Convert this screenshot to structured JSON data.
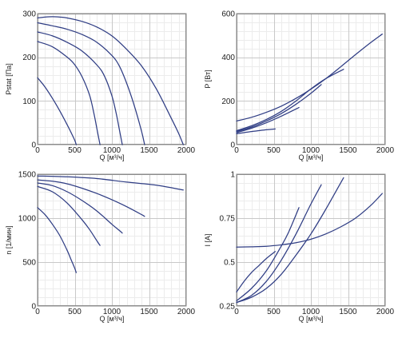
{
  "chart_data": [
    {
      "type": "line",
      "title": "",
      "xlabel": "Q [м³/ч]",
      "ylabel": "Pstat [Па]",
      "xlim": [
        0,
        2000
      ],
      "ylim": [
        0,
        300
      ],
      "xticks": [
        "0",
        "500",
        "1000",
        "1500",
        "2000"
      ],
      "yticks": [
        "0",
        "100",
        "200",
        "300"
      ],
      "grid": true,
      "line_color": "#2f3d84",
      "series": [
        {
          "x": [
            0,
            100,
            200,
            300,
            400,
            450,
            500,
            520
          ],
          "values": [
            153,
            132,
            106,
            77,
            45,
            28,
            10,
            0
          ]
        },
        {
          "x": [
            0,
            200,
            400,
            500,
            600,
            700,
            760,
            800,
            840
          ],
          "values": [
            236,
            224,
            200,
            183,
            155,
            113,
            70,
            35,
            0
          ]
        },
        {
          "x": [
            0,
            200,
            400,
            600,
            800,
            900,
            1000,
            1060,
            1100,
            1140
          ],
          "values": [
            258,
            249,
            234,
            214,
            182,
            157,
            112,
            70,
            35,
            0
          ]
        },
        {
          "x": [
            0,
            200,
            400,
            600,
            800,
            1000,
            1100,
            1200,
            1300,
            1400,
            1440
          ],
          "values": [
            279,
            272,
            264,
            252,
            234,
            204,
            180,
            140,
            90,
            30,
            0
          ]
        },
        {
          "x": [
            0,
            100,
            200,
            300,
            400,
            600,
            800,
            1000,
            1200,
            1400,
            1600,
            1800,
            1900,
            1960
          ],
          "values": [
            290,
            292,
            293,
            292,
            290,
            282,
            269,
            249,
            218,
            180,
            127,
            60,
            25,
            0
          ]
        }
      ]
    },
    {
      "type": "line",
      "title": "",
      "xlabel": "Q [м³/ч]",
      "ylabel": "P [Вт]",
      "xlim": [
        0,
        2000
      ],
      "ylim": [
        0,
        600
      ],
      "xticks": [
        "0",
        "500",
        "1000",
        "1500",
        "2000"
      ],
      "yticks": [
        "0",
        "200",
        "400",
        "600"
      ],
      "grid": true,
      "line_color": "#2f3d84",
      "series": [
        {
          "x": [
            0,
            100,
            200,
            300,
            400,
            520
          ],
          "values": [
            50,
            55,
            60,
            64,
            68,
            72
          ]
        },
        {
          "x": [
            0,
            200,
            400,
            600,
            840
          ],
          "values": [
            55,
            75,
            100,
            130,
            170
          ]
        },
        {
          "x": [
            0,
            200,
            400,
            600,
            800,
            1000,
            1140
          ],
          "values": [
            60,
            80,
            108,
            142,
            185,
            235,
            275
          ]
        },
        {
          "x": [
            0,
            200,
            400,
            600,
            800,
            1000,
            1200,
            1440
          ],
          "values": [
            64,
            86,
            115,
            152,
            200,
            255,
            302,
            345
          ]
        },
        {
          "x": [
            0,
            200,
            400,
            600,
            800,
            1000,
            1200,
            1400,
            1600,
            1800,
            1960
          ],
          "values": [
            108,
            125,
            148,
            176,
            212,
            254,
            302,
            356,
            412,
            466,
            506
          ]
        }
      ]
    },
    {
      "type": "line",
      "title": "",
      "xlabel": "Q [м³/ч]",
      "ylabel": "n [1/мин]",
      "xlim": [
        0,
        2000
      ],
      "ylim": [
        0,
        1500
      ],
      "xticks": [
        "0",
        "500",
        "1000",
        "1500",
        "2000"
      ],
      "yticks": [
        "0",
        "500",
        "1000",
        "1500"
      ],
      "grid": true,
      "line_color": "#2f3d84",
      "series": [
        {
          "x": [
            0,
            100,
            200,
            300,
            400,
            450,
            500,
            520
          ],
          "values": [
            1120,
            1040,
            930,
            800,
            630,
            530,
            430,
            380
          ]
        },
        {
          "x": [
            0,
            200,
            400,
            600,
            700,
            800,
            840
          ],
          "values": [
            1360,
            1300,
            1170,
            980,
            870,
            740,
            690
          ]
        },
        {
          "x": [
            0,
            200,
            400,
            600,
            800,
            1000,
            1100,
            1140
          ],
          "values": [
            1400,
            1370,
            1300,
            1200,
            1080,
            930,
            860,
            830
          ]
        },
        {
          "x": [
            0,
            200,
            400,
            600,
            800,
            1000,
            1200,
            1400,
            1440
          ],
          "values": [
            1435,
            1420,
            1390,
            1340,
            1280,
            1210,
            1130,
            1040,
            1020
          ]
        },
        {
          "x": [
            0,
            400,
            800,
            1200,
            1600,
            1960
          ],
          "values": [
            1480,
            1470,
            1450,
            1410,
            1375,
            1320
          ]
        }
      ]
    },
    {
      "type": "line",
      "title": "",
      "xlabel": "Q [м³/ч]",
      "ylabel": "I [A]",
      "xlim": [
        0,
        2000
      ],
      "ylim": [
        0.25,
        1
      ],
      "xticks": [
        "0",
        "500",
        "1000",
        "1500",
        "2000"
      ],
      "yticks": [
        "0.25",
        "0.5",
        "0.75",
        "1"
      ],
      "grid": true,
      "line_color": "#2f3d84",
      "series": [
        {
          "x": [
            0,
            100,
            200,
            300,
            400,
            520
          ],
          "values": [
            0.33,
            0.39,
            0.44,
            0.48,
            0.52,
            0.56
          ]
        },
        {
          "x": [
            0,
            200,
            400,
            600,
            700,
            840
          ],
          "values": [
            0.28,
            0.35,
            0.45,
            0.59,
            0.67,
            0.81
          ]
        },
        {
          "x": [
            0,
            200,
            400,
            600,
            800,
            1000,
            1140
          ],
          "values": [
            0.27,
            0.31,
            0.39,
            0.51,
            0.66,
            0.83,
            0.94
          ]
        },
        {
          "x": [
            0,
            200,
            400,
            600,
            800,
            1000,
            1200,
            1440
          ],
          "values": [
            0.27,
            0.3,
            0.35,
            0.43,
            0.54,
            0.66,
            0.8,
            0.98
          ]
        },
        {
          "x": [
            0,
            200,
            400,
            600,
            800,
            1000,
            1200,
            1400,
            1600,
            1800,
            1960
          ],
          "values": [
            0.585,
            0.587,
            0.59,
            0.598,
            0.61,
            0.63,
            0.66,
            0.7,
            0.75,
            0.82,
            0.89
          ]
        }
      ]
    }
  ]
}
